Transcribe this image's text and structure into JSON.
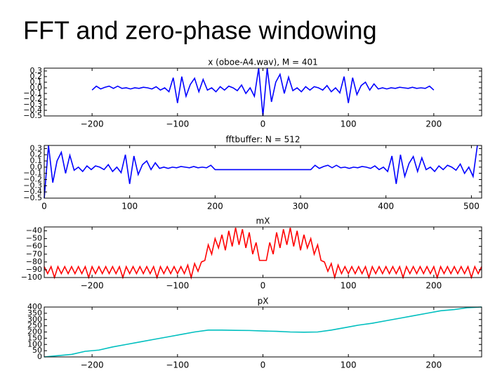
{
  "title": "FFT and zero-phase windowing",
  "chart_data": [
    {
      "type": "line",
      "title": "x (oboe-A4.wav), M = 401",
      "color": "#0000ff",
      "xlim": [
        -256,
        256
      ],
      "ylim": [
        -0.5,
        0.35
      ],
      "xticks": [
        {
          "value": -200,
          "label": "−200"
        },
        {
          "value": -100,
          "label": "−100"
        },
        0,
        100,
        200
      ],
      "yticks": [
        0.3,
        0.2,
        0.1,
        {
          "value": 0,
          "label": "0.0"
        },
        {
          "value": -0.1,
          "label": "−0.1"
        },
        {
          "value": -0.2,
          "label": "−0.2"
        },
        {
          "value": -0.3,
          "label": "−0.3"
        },
        {
          "value": -0.4,
          "label": "−0.4"
        },
        {
          "value": -0.5,
          "label": "−0.5"
        }
      ],
      "x": [
        -200,
        -195,
        -190,
        -185,
        -180,
        -175,
        -170,
        -165,
        -160,
        -155,
        -150,
        -145,
        -140,
        -135,
        -130,
        -125,
        -120,
        -115,
        -110,
        -105,
        -100,
        -95,
        -90,
        -85,
        -80,
        -75,
        -70,
        -65,
        -60,
        -55,
        -50,
        -45,
        -40,
        -35,
        -30,
        -25,
        -20,
        -15,
        -10,
        -5,
        0,
        5,
        10,
        15,
        20,
        25,
        30,
        35,
        40,
        45,
        50,
        55,
        60,
        65,
        70,
        75,
        80,
        85,
        90,
        95,
        100,
        105,
        110,
        115,
        120,
        125,
        130,
        135,
        140,
        145,
        150,
        155,
        160,
        165,
        170,
        175,
        180,
        185,
        190,
        195,
        200
      ],
      "values": [
        -0.04,
        0.03,
        -0.02,
        0.01,
        0.03,
        -0.01,
        0.03,
        -0.01,
        0,
        -0.02,
        0,
        -0.01,
        0.01,
        0,
        -0.02,
        0.02,
        -0.04,
        0,
        -0.07,
        0.18,
        -0.27,
        0.2,
        -0.15,
        0.06,
        0.17,
        -0.07,
        0.15,
        -0.04,
        0,
        -0.07,
        0.02,
        -0.04,
        0.03,
        0,
        -0.05,
        0.05,
        -0.1,
        0,
        -0.15,
        0.35,
        -0.5,
        0.35,
        -0.25,
        0.1,
        0.24,
        -0.1,
        0.19,
        -0.05,
        0,
        -0.07,
        0.02,
        -0.04,
        0.02,
        0,
        -0.04,
        0.04,
        -0.07,
        0,
        -0.09,
        0.2,
        -0.27,
        0.18,
        -0.12,
        0.04,
        0.1,
        -0.04,
        0.07,
        -0.02,
        0,
        -0.02,
        0,
        -0.01,
        0.01,
        0,
        -0.01,
        0.01,
        -0.01,
        0,
        -0.01,
        0.03,
        -0.04
      ]
    },
    {
      "type": "line",
      "title": "fftbuffer: N = 512",
      "color": "#0000ff",
      "xlim": [
        0,
        512
      ],
      "ylim": [
        -0.5,
        0.35
      ],
      "xticks": [
        0,
        100,
        200,
        300,
        400,
        500
      ],
      "yticks": [
        0.3,
        0.2,
        0.1,
        {
          "value": 0,
          "label": "0.0"
        },
        {
          "value": -0.1,
          "label": "−0.1"
        },
        {
          "value": -0.2,
          "label": "−0.2"
        },
        {
          "value": -0.3,
          "label": "−0.3"
        },
        {
          "value": -0.4,
          "label": "−0.4"
        },
        {
          "value": -0.5,
          "label": "−0.5"
        }
      ],
      "x": [
        0,
        5,
        10,
        15,
        20,
        25,
        30,
        35,
        40,
        45,
        50,
        55,
        60,
        65,
        70,
        75,
        80,
        85,
        90,
        95,
        100,
        105,
        110,
        115,
        120,
        125,
        130,
        135,
        140,
        145,
        150,
        155,
        160,
        165,
        170,
        175,
        180,
        185,
        190,
        195,
        200,
        312,
        317,
        322,
        327,
        332,
        337,
        342,
        347,
        352,
        357,
        362,
        367,
        372,
        377,
        382,
        387,
        392,
        397,
        402,
        407,
        412,
        417,
        422,
        427,
        432,
        437,
        442,
        447,
        452,
        457,
        462,
        467,
        472,
        477,
        482,
        487,
        492,
        497,
        502,
        507
      ],
      "values": [
        -0.5,
        0.35,
        -0.25,
        0.1,
        0.24,
        -0.1,
        0.19,
        -0.05,
        0,
        -0.07,
        0.02,
        -0.04,
        0.02,
        0,
        -0.04,
        0.04,
        -0.07,
        0,
        -0.09,
        0.2,
        -0.27,
        0.18,
        -0.12,
        0.04,
        0.1,
        -0.04,
        0.07,
        -0.02,
        0,
        -0.02,
        0,
        -0.01,
        0.01,
        0,
        -0.01,
        0.01,
        -0.01,
        0,
        -0.01,
        0.03,
        -0.04,
        -0.04,
        0.03,
        -0.02,
        0.01,
        0.03,
        -0.01,
        0.03,
        -0.01,
        0,
        -0.02,
        0,
        -0.01,
        0.01,
        0,
        -0.02,
        0.02,
        -0.04,
        0,
        -0.07,
        0.18,
        -0.27,
        0.2,
        -0.15,
        0.06,
        0.17,
        -0.07,
        0.15,
        -0.04,
        0,
        -0.07,
        0.02,
        -0.04,
        0.03,
        0,
        -0.05,
        0.05,
        -0.1,
        0,
        -0.15,
        0.35
      ]
    },
    {
      "type": "line",
      "title": "mX",
      "color": "#ff0000",
      "xlim": [
        -256,
        256
      ],
      "ylim": [
        -100,
        -35
      ],
      "xticks": [
        {
          "value": -200,
          "label": "−200"
        },
        {
          "value": -100,
          "label": "−100"
        },
        0,
        100,
        200
      ],
      "yticks": [
        {
          "value": -40,
          "label": "−40"
        },
        {
          "value": -50,
          "label": "−50"
        },
        {
          "value": -60,
          "label": "−60"
        },
        {
          "value": -70,
          "label": "−70"
        },
        {
          "value": -80,
          "label": "−80"
        },
        {
          "value": -90,
          "label": "−90"
        },
        {
          "value": -100,
          "label": "−100"
        }
      ],
      "x": [
        -256,
        -252,
        -248,
        -244,
        -240,
        -236,
        -232,
        -228,
        -224,
        -220,
        -216,
        -212,
        -208,
        -204,
        -200,
        -196,
        -192,
        -188,
        -184,
        -180,
        -176,
        -172,
        -168,
        -164,
        -160,
        -156,
        -152,
        -148,
        -144,
        -140,
        -136,
        -132,
        -128,
        -124,
        -120,
        -116,
        -112,
        -108,
        -104,
        -100,
        -96,
        -92,
        -88,
        -84,
        -80,
        -76,
        -72,
        -68,
        -64,
        -60,
        -56,
        -52,
        -48,
        -44,
        -40,
        -36,
        -32,
        -28,
        -24,
        -20,
        -16,
        -12,
        -8,
        -4,
        0,
        4,
        8,
        12,
        16,
        20,
        24,
        28,
        32,
        36,
        40,
        44,
        48,
        52,
        56,
        60,
        64,
        68,
        72,
        76,
        80,
        84,
        88,
        92,
        96,
        100,
        104,
        108,
        112,
        116,
        120,
        124,
        128,
        132,
        136,
        140,
        144,
        148,
        152,
        156,
        160,
        164,
        168,
        172,
        176,
        180,
        184,
        188,
        192,
        196,
        200,
        204,
        208,
        212,
        216,
        220,
        224,
        228,
        232,
        236,
        240,
        244,
        248,
        252,
        256
      ],
      "values": [
        -86,
        -95,
        -86,
        -100,
        -86,
        -95,
        -86,
        -95,
        -86,
        -95,
        -86,
        -95,
        -86,
        -100,
        -86,
        -95,
        -86,
        -95,
        -86,
        -95,
        -86,
        -95,
        -86,
        -100,
        -86,
        -95,
        -86,
        -95,
        -86,
        -95,
        -86,
        -95,
        -86,
        -100,
        -86,
        -95,
        -86,
        -95,
        -86,
        -95,
        -86,
        -95,
        -84,
        -100,
        -82,
        -92,
        -80,
        -78,
        -58,
        -70,
        -50,
        -62,
        -45,
        -65,
        -40,
        -60,
        -36,
        -58,
        -38,
        -62,
        -42,
        -70,
        -55,
        -78,
        -78,
        -78,
        -55,
        -70,
        -42,
        -62,
        -38,
        -58,
        -36,
        -60,
        -40,
        -65,
        -45,
        -62,
        -50,
        -70,
        -58,
        -78,
        -80,
        -92,
        -82,
        -100,
        -84,
        -95,
        -86,
        -95,
        -86,
        -95,
        -86,
        -95,
        -86,
        -100,
        -86,
        -95,
        -86,
        -95,
        -86,
        -95,
        -86,
        -95,
        -86,
        -100,
        -86,
        -95,
        -86,
        -95,
        -86,
        -95,
        -86,
        -95,
        -86,
        -100,
        -86,
        -95,
        -86,
        -95,
        -86,
        -95,
        -86,
        -95,
        -86,
        -100,
        -86,
        -95,
        -86
      ]
    },
    {
      "type": "line",
      "title": "pX",
      "color": "#00bfbf",
      "xlim": [
        -256,
        256
      ],
      "ylim": [
        0,
        400
      ],
      "xticks": [
        {
          "value": -200,
          "label": "−200"
        },
        {
          "value": -100,
          "label": "−100"
        },
        0,
        100,
        200
      ],
      "yticks": [
        400,
        350,
        300,
        250,
        200,
        150,
        100,
        50,
        0
      ],
      "x": [
        -256,
        -240,
        -224,
        -208,
        -192,
        -176,
        -160,
        -144,
        -128,
        -112,
        -96,
        -80,
        -64,
        -48,
        -32,
        -16,
        0,
        16,
        32,
        48,
        64,
        80,
        96,
        112,
        128,
        144,
        160,
        176,
        192,
        208,
        224,
        240,
        256
      ],
      "values": [
        0,
        10,
        20,
        45,
        55,
        80,
        100,
        120,
        140,
        160,
        180,
        200,
        215,
        215,
        213,
        212,
        208,
        205,
        200,
        198,
        200,
        215,
        235,
        255,
        270,
        290,
        310,
        330,
        350,
        370,
        380,
        395,
        400
      ]
    }
  ]
}
